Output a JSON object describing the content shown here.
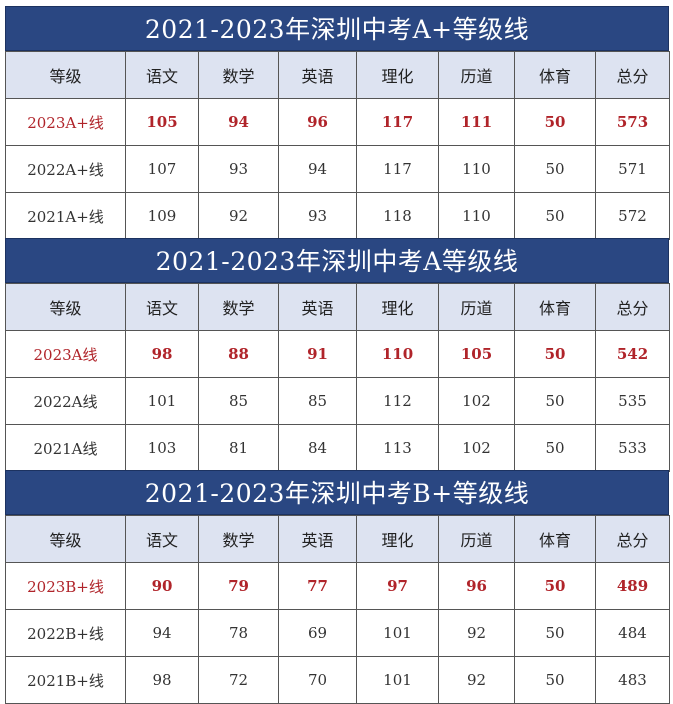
{
  "headers": [
    "等级",
    "语文",
    "数学",
    "英语",
    "理化",
    "历道",
    "体育",
    "总分"
  ],
  "sections": [
    {
      "title": "2021-2023年深圳中考A+等级线",
      "rows": [
        {
          "label": "2023A+线",
          "values": [
            "105",
            "94",
            "96",
            "117",
            "111",
            "50",
            "573"
          ],
          "highlight": true
        },
        {
          "label": "2022A+线",
          "values": [
            "107",
            "93",
            "94",
            "117",
            "110",
            "50",
            "571"
          ],
          "highlight": false
        },
        {
          "label": "2021A+线",
          "values": [
            "109",
            "92",
            "93",
            "118",
            "110",
            "50",
            "572"
          ],
          "highlight": false
        }
      ]
    },
    {
      "title": "2021-2023年深圳中考A等级线",
      "rows": [
        {
          "label": "2023A线",
          "values": [
            "98",
            "88",
            "91",
            "110",
            "105",
            "50",
            "542"
          ],
          "highlight": true
        },
        {
          "label": "2022A线",
          "values": [
            "101",
            "85",
            "85",
            "112",
            "102",
            "50",
            "535"
          ],
          "highlight": false
        },
        {
          "label": "2021A线",
          "values": [
            "103",
            "81",
            "84",
            "113",
            "102",
            "50",
            "533"
          ],
          "highlight": false
        }
      ]
    },
    {
      "title": "2021-2023年深圳中考B+等级线",
      "rows": [
        {
          "label": "2023B+线",
          "values": [
            "90",
            "79",
            "77",
            "97",
            "96",
            "50",
            "489"
          ],
          "highlight": true
        },
        {
          "label": "2022B+线",
          "values": [
            "94",
            "78",
            "69",
            "101",
            "92",
            "50",
            "484"
          ],
          "highlight": false
        },
        {
          "label": "2021B+线",
          "values": [
            "98",
            "72",
            "70",
            "101",
            "92",
            "50",
            "483"
          ],
          "highlight": false
        }
      ]
    }
  ],
  "colors": {
    "title_bg": "#2a4782",
    "header_bg": "#dde3f1",
    "highlight_text": "#b0242a"
  }
}
